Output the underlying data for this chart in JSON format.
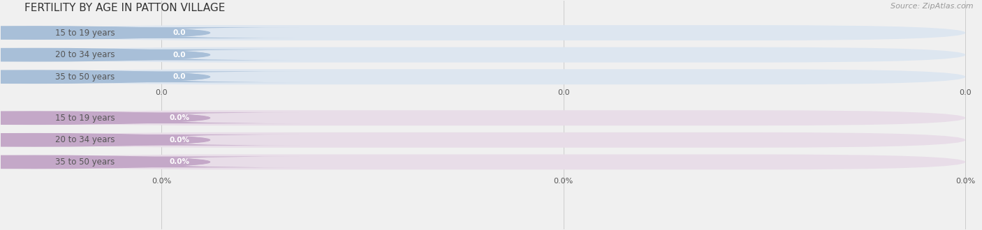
{
  "title": "FERTILITY BY AGE IN PATTON VILLAGE",
  "source": "Source: ZipAtlas.com",
  "categories": [
    "15 to 19 years",
    "20 to 34 years",
    "35 to 50 years"
  ],
  "group1_labels": [
    "0.0",
    "0.0",
    "0.0"
  ],
  "group1_circle_color": "#a8bfd8",
  "group1_pill_bg": "#dde6f0",
  "group1_badge_color": "#a8bfd8",
  "group1_badge_text_color": "#ffffff",
  "group2_labels": [
    "0.0%",
    "0.0%",
    "0.0%"
  ],
  "group2_circle_color": "#c4a8c8",
  "group2_pill_bg": "#e8dde8",
  "group2_badge_color": "#c4a8c8",
  "group2_badge_text_color": "#ffffff",
  "tick_labels_group1": [
    "0.0",
    "0.0",
    "0.0"
  ],
  "tick_labels_group2": [
    "0.0%",
    "0.0%",
    "0.0%"
  ],
  "background_color": "#f0f0f0",
  "grid_color": "#cccccc",
  "text_color": "#555555",
  "title_color": "#333333",
  "source_color": "#999999",
  "title_fontsize": 11,
  "label_fontsize": 8.5,
  "tick_fontsize": 8,
  "source_fontsize": 8
}
